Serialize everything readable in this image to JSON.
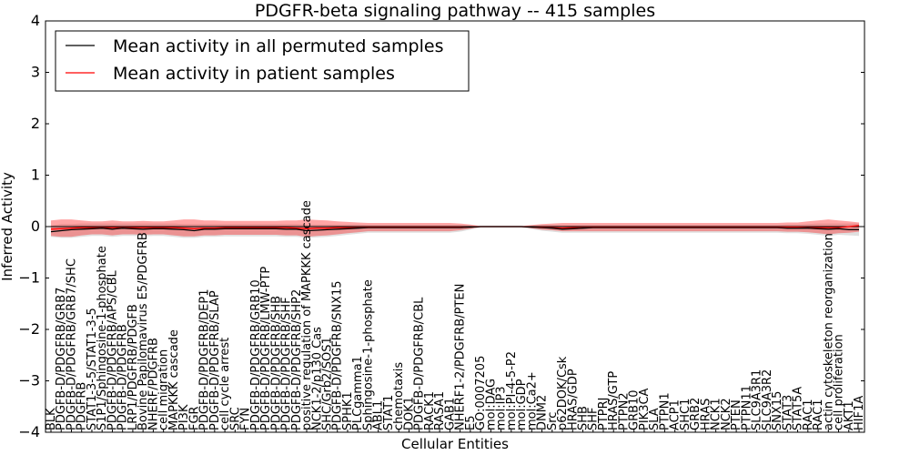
{
  "chart_data": {
    "type": "line",
    "title": "PDGFR-beta signaling pathway -- 415 samples",
    "xlabel": "Cellular Entities",
    "ylabel": "Inferred Activity",
    "ylim": [
      -4,
      4
    ],
    "yticks": [
      "4",
      "3",
      "2",
      "1",
      "0",
      "−1",
      "−2",
      "−3",
      "−4"
    ],
    "ytick_values": [
      4,
      3,
      2,
      1,
      0,
      -1,
      -2,
      -3,
      -4
    ],
    "grid": false,
    "legend_position": "top-left",
    "categories": [
      "BLK",
      "PDGFB-D/PDGFRB/GRB7",
      "PDGFB-D/PDGFRB/GRB7/SHC",
      "PDGFRB",
      "STAT1-3-5/STAT1-3-5",
      "S1P1/Sphingosine-1-phosphate",
      "PDGFB-D/PDGFRB/APS/CBL",
      "PDGFB-D/PDGFRB",
      "LRP1/PDGFRB/PDGFB",
      "Bovine Papilomavirus E5/PDGFRB",
      "NHERF/PDGFRB",
      "cell migration",
      "MAPKKK cascade",
      "PI3K",
      "FGR",
      "PDGFB-D/PDGFRB/DEP1",
      "PDGFB-D/PDGFRB/SLAP",
      "cell cycle arrest",
      "SRC",
      "FYN",
      "PDGFB-D/PDGFRB/GRB10",
      "PDGFB-D/PDGFRB/LMW-PTP",
      "PDGFB-D/PDGFRB/SHB",
      "PDGFB-D/PDGFRB/SHF",
      "PDGFB-D/PDGFRB/SHP2",
      "positive regulation of MAPKKK cascade",
      "NCK1-2/p130 Cas",
      "SHC/Grb2/SOS1",
      "PDGFB-D/PDGFRB/SNX15",
      "SPHK1",
      "PLCgamma1",
      "Sphingosine-1-phosphate",
      "ABL1",
      "STAT1",
      "chemotaxis",
      "DOK1",
      "PDGFB-D/PDGFRB/CBL",
      "RACK1",
      "RASA1",
      "GAB1",
      "NHERF1-2/PDGFRB/PTEN",
      "E5",
      "GO:0007205",
      "mol:DAG",
      "mol:IP3",
      "mol:PI-4-5-P2",
      "mol:GDP",
      "mol:Ca2+",
      "DNM2",
      "Src",
      "p62DOK/Csk",
      "HRAS/GDP",
      "SHB",
      "SHF",
      "PTPRJ",
      "HRAS/GTP",
      "PTPN2",
      "GRB10",
      "PIK3CA",
      "SLA",
      "PTPN1",
      "ACP1",
      "SHC1",
      "GRB2",
      "HRAS",
      "NCK1",
      "NCK2",
      "PTEN",
      "PTPN11",
      "SLC9A3R1",
      "SLC9A3R2",
      "SNX15",
      "STAT3",
      "STAT5A",
      "RAC1",
      "RAC1",
      "actin cytoskeleton reorganization",
      "cell proliferation",
      "AKT1",
      "HIF1A"
    ],
    "series": [
      {
        "name": "Mean activity in all permuted samples",
        "color": "#000000",
        "values": [
          -0.1,
          -0.08,
          -0.06,
          -0.05,
          -0.04,
          -0.03,
          -0.05,
          -0.03,
          -0.04,
          -0.05,
          -0.04,
          -0.04,
          -0.05,
          -0.06,
          -0.08,
          -0.05,
          -0.05,
          -0.04,
          -0.04,
          -0.04,
          -0.04,
          -0.04,
          -0.04,
          -0.05,
          -0.05,
          -0.08,
          -0.07,
          -0.06,
          -0.05,
          -0.04,
          -0.03,
          -0.02,
          -0.02,
          -0.02,
          -0.02,
          -0.02,
          -0.02,
          -0.02,
          -0.02,
          -0.02,
          -0.02,
          -0.01,
          0.0,
          0.0,
          0.0,
          0.0,
          0.0,
          -0.01,
          -0.02,
          -0.03,
          -0.05,
          -0.04,
          -0.03,
          -0.02,
          -0.02,
          -0.02,
          -0.02,
          -0.02,
          -0.02,
          -0.02,
          -0.02,
          -0.02,
          -0.02,
          -0.02,
          -0.02,
          -0.02,
          -0.02,
          -0.02,
          -0.02,
          -0.02,
          -0.02,
          -0.02,
          -0.03,
          -0.03,
          -0.03,
          -0.04,
          -0.05,
          -0.04,
          -0.06,
          -0.06
        ],
        "band_low": [
          -0.2,
          -0.22,
          -0.22,
          -0.2,
          -0.18,
          -0.18,
          -0.2,
          -0.18,
          -0.18,
          -0.19,
          -0.18,
          -0.18,
          -0.2,
          -0.22,
          -0.22,
          -0.2,
          -0.2,
          -0.19,
          -0.19,
          -0.19,
          -0.19,
          -0.19,
          -0.19,
          -0.2,
          -0.2,
          -0.22,
          -0.21,
          -0.2,
          -0.18,
          -0.16,
          -0.14,
          -0.12,
          -0.12,
          -0.12,
          -0.12,
          -0.12,
          -0.12,
          -0.12,
          -0.12,
          -0.12,
          -0.1,
          -0.06,
          -0.02,
          -0.02,
          -0.02,
          -0.02,
          -0.02,
          -0.05,
          -0.08,
          -0.1,
          -0.12,
          -0.12,
          -0.12,
          -0.12,
          -0.12,
          -0.12,
          -0.12,
          -0.12,
          -0.12,
          -0.12,
          -0.12,
          -0.12,
          -0.12,
          -0.12,
          -0.12,
          -0.12,
          -0.12,
          -0.12,
          -0.12,
          -0.12,
          -0.12,
          -0.12,
          -0.13,
          -0.13,
          -0.14,
          -0.16,
          -0.18,
          -0.16,
          -0.17,
          -0.18
        ],
        "band_high": [
          0.02,
          0.05,
          0.05,
          0.06,
          0.06,
          0.06,
          0.06,
          0.06,
          0.06,
          0.06,
          0.06,
          0.06,
          0.06,
          0.05,
          0.05,
          0.05,
          0.05,
          0.05,
          0.05,
          0.05,
          0.05,
          0.05,
          0.05,
          0.05,
          0.05,
          0.04,
          0.04,
          0.04,
          0.04,
          0.04,
          0.04,
          0.03,
          0.03,
          0.03,
          0.03,
          0.03,
          0.03,
          0.03,
          0.03,
          0.03,
          0.03,
          0.02,
          0.01,
          0.01,
          0.01,
          0.01,
          0.01,
          0.02,
          0.03,
          0.03,
          0.03,
          0.03,
          0.03,
          0.03,
          0.03,
          0.03,
          0.03,
          0.03,
          0.03,
          0.03,
          0.03,
          0.03,
          0.03,
          0.03,
          0.03,
          0.03,
          0.03,
          0.03,
          0.03,
          0.03,
          0.03,
          0.03,
          0.04,
          0.04,
          0.05,
          0.06,
          0.06,
          0.06,
          0.06,
          0.06
        ]
      },
      {
        "name": "Mean activity in patient samples",
        "color": "#ff0000",
        "values": [
          -0.05,
          -0.04,
          -0.03,
          -0.02,
          -0.02,
          -0.02,
          -0.02,
          -0.02,
          -0.02,
          -0.02,
          -0.02,
          -0.02,
          -0.02,
          -0.03,
          -0.04,
          -0.03,
          -0.03,
          -0.02,
          -0.02,
          -0.02,
          -0.02,
          -0.02,
          -0.02,
          -0.02,
          -0.03,
          -0.04,
          -0.03,
          -0.03,
          -0.02,
          -0.02,
          -0.02,
          -0.01,
          -0.01,
          -0.01,
          -0.01,
          -0.01,
          -0.01,
          -0.01,
          -0.01,
          -0.01,
          -0.01,
          -0.01,
          0.0,
          0.0,
          0.0,
          0.0,
          0.0,
          -0.01,
          -0.01,
          -0.02,
          -0.03,
          -0.02,
          -0.02,
          -0.01,
          -0.01,
          -0.01,
          -0.01,
          -0.01,
          -0.01,
          -0.01,
          -0.01,
          -0.01,
          -0.01,
          -0.01,
          -0.01,
          -0.01,
          -0.01,
          -0.01,
          -0.01,
          -0.01,
          -0.01,
          -0.01,
          -0.01,
          -0.01,
          -0.02,
          -0.02,
          -0.02,
          -0.02,
          0.0,
          0.02
        ],
        "band_low": [
          -0.18,
          -0.2,
          -0.2,
          -0.17,
          -0.15,
          -0.15,
          -0.17,
          -0.15,
          -0.15,
          -0.16,
          -0.15,
          -0.15,
          -0.17,
          -0.19,
          -0.19,
          -0.17,
          -0.17,
          -0.16,
          -0.16,
          -0.16,
          -0.16,
          -0.16,
          -0.16,
          -0.17,
          -0.17,
          -0.2,
          -0.18,
          -0.17,
          -0.15,
          -0.13,
          -0.11,
          -0.09,
          -0.09,
          -0.09,
          -0.09,
          -0.09,
          -0.09,
          -0.09,
          -0.09,
          -0.09,
          -0.07,
          -0.04,
          -0.01,
          -0.01,
          -0.01,
          -0.01,
          -0.01,
          -0.03,
          -0.06,
          -0.07,
          -0.09,
          -0.09,
          -0.09,
          -0.09,
          -0.09,
          -0.09,
          -0.09,
          -0.09,
          -0.09,
          -0.09,
          -0.09,
          -0.09,
          -0.09,
          -0.09,
          -0.09,
          -0.09,
          -0.09,
          -0.09,
          -0.09,
          -0.09,
          -0.09,
          -0.09,
          -0.1,
          -0.1,
          -0.11,
          -0.13,
          -0.15,
          -0.13,
          -0.12,
          -0.1
        ],
        "band_high": [
          0.12,
          0.14,
          0.14,
          0.12,
          0.1,
          0.1,
          0.12,
          0.1,
          0.1,
          0.11,
          0.1,
          0.1,
          0.12,
          0.14,
          0.14,
          0.12,
          0.12,
          0.11,
          0.11,
          0.11,
          0.11,
          0.11,
          0.11,
          0.12,
          0.12,
          0.14,
          0.13,
          0.12,
          0.1,
          0.09,
          0.08,
          0.07,
          0.07,
          0.07,
          0.07,
          0.07,
          0.07,
          0.07,
          0.07,
          0.07,
          0.06,
          0.04,
          0.01,
          0.01,
          0.01,
          0.01,
          0.01,
          0.03,
          0.05,
          0.06,
          0.07,
          0.07,
          0.07,
          0.07,
          0.07,
          0.07,
          0.07,
          0.07,
          0.07,
          0.07,
          0.07,
          0.07,
          0.07,
          0.07,
          0.07,
          0.07,
          0.07,
          0.07,
          0.07,
          0.07,
          0.07,
          0.07,
          0.08,
          0.08,
          0.1,
          0.12,
          0.14,
          0.12,
          0.1,
          0.08
        ]
      }
    ]
  }
}
